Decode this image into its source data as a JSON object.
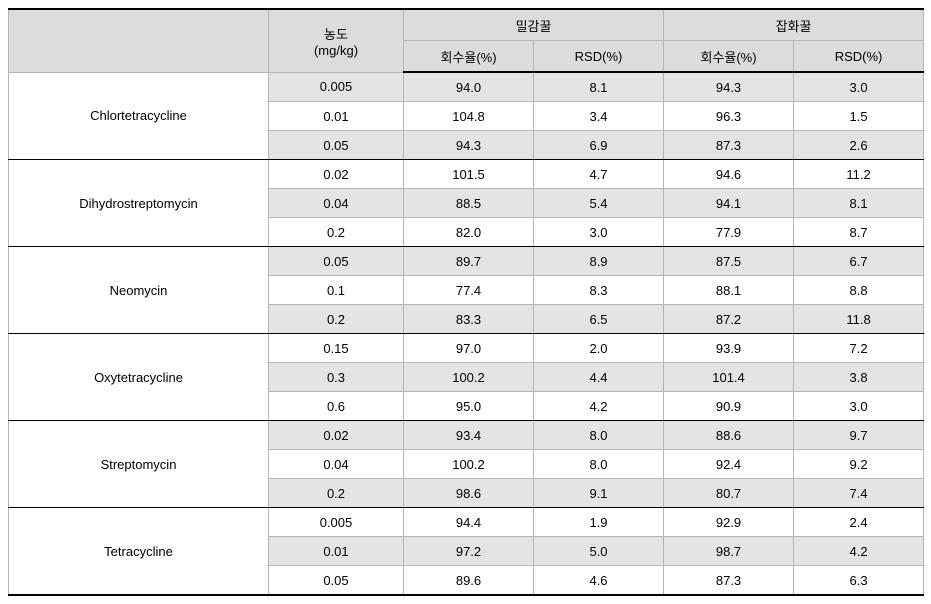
{
  "headers": {
    "blank": "",
    "conc": "농도",
    "conc_unit": "(mg/kg)",
    "group1": "밀감꿀",
    "group2": "잡화꿀",
    "recovery": "회수율(%)",
    "rsd": "RSD(%)"
  },
  "compounds": [
    {
      "name": "Chlortetracycline",
      "rows": [
        {
          "conc": "0.005",
          "r1": "94.0",
          "s1": "8.1",
          "r2": "94.3",
          "s2": "3.0",
          "shade": true
        },
        {
          "conc": "0.01",
          "r1": "104.8",
          "s1": "3.4",
          "r2": "96.3",
          "s2": "1.5",
          "shade": false
        },
        {
          "conc": "0.05",
          "r1": "94.3",
          "s1": "6.9",
          "r2": "87.3",
          "s2": "2.6",
          "shade": true
        }
      ]
    },
    {
      "name": "Dihydrostreptomycin",
      "rows": [
        {
          "conc": "0.02",
          "r1": "101.5",
          "s1": "4.7",
          "r2": "94.6",
          "s2": "11.2",
          "shade": false
        },
        {
          "conc": "0.04",
          "r1": "88.5",
          "s1": "5.4",
          "r2": "94.1",
          "s2": "8.1",
          "shade": true
        },
        {
          "conc": "0.2",
          "r1": "82.0",
          "s1": "3.0",
          "r2": "77.9",
          "s2": "8.7",
          "shade": false
        }
      ]
    },
    {
      "name": "Neomycin",
      "rows": [
        {
          "conc": "0.05",
          "r1": "89.7",
          "s1": "8.9",
          "r2": "87.5",
          "s2": "6.7",
          "shade": true
        },
        {
          "conc": "0.1",
          "r1": "77.4",
          "s1": "8.3",
          "r2": "88.1",
          "s2": "8.8",
          "shade": false
        },
        {
          "conc": "0.2",
          "r1": "83.3",
          "s1": "6.5",
          "r2": "87.2",
          "s2": "11.8",
          "shade": true
        }
      ]
    },
    {
      "name": "Oxytetracycline",
      "rows": [
        {
          "conc": "0.15",
          "r1": "97.0",
          "s1": "2.0",
          "r2": "93.9",
          "s2": "7.2",
          "shade": false
        },
        {
          "conc": "0.3",
          "r1": "100.2",
          "s1": "4.4",
          "r2": "101.4",
          "s2": "3.8",
          "shade": true
        },
        {
          "conc": "0.6",
          "r1": "95.0",
          "s1": "4.2",
          "r2": "90.9",
          "s2": "3.0",
          "shade": false
        }
      ]
    },
    {
      "name": "Streptomycin",
      "rows": [
        {
          "conc": "0.02",
          "r1": "93.4",
          "s1": "8.0",
          "r2": "88.6",
          "s2": "9.7",
          "shade": true
        },
        {
          "conc": "0.04",
          "r1": "100.2",
          "s1": "8.0",
          "r2": "92.4",
          "s2": "9.2",
          "shade": false
        },
        {
          "conc": "0.2",
          "r1": "98.6",
          "s1": "9.1",
          "r2": "80.7",
          "s2": "7.4",
          "shade": true
        }
      ]
    },
    {
      "name": "Tetracycline",
      "rows": [
        {
          "conc": "0.005",
          "r1": "94.4",
          "s1": "1.9",
          "r2": "92.9",
          "s2": "2.4",
          "shade": false
        },
        {
          "conc": "0.01",
          "r1": "97.2",
          "s1": "5.0",
          "r2": "98.7",
          "s2": "4.2",
          "shade": true
        },
        {
          "conc": "0.05",
          "r1": "89.6",
          "s1": "4.6",
          "r2": "87.3",
          "s2": "6.3",
          "shade": false
        }
      ]
    }
  ]
}
